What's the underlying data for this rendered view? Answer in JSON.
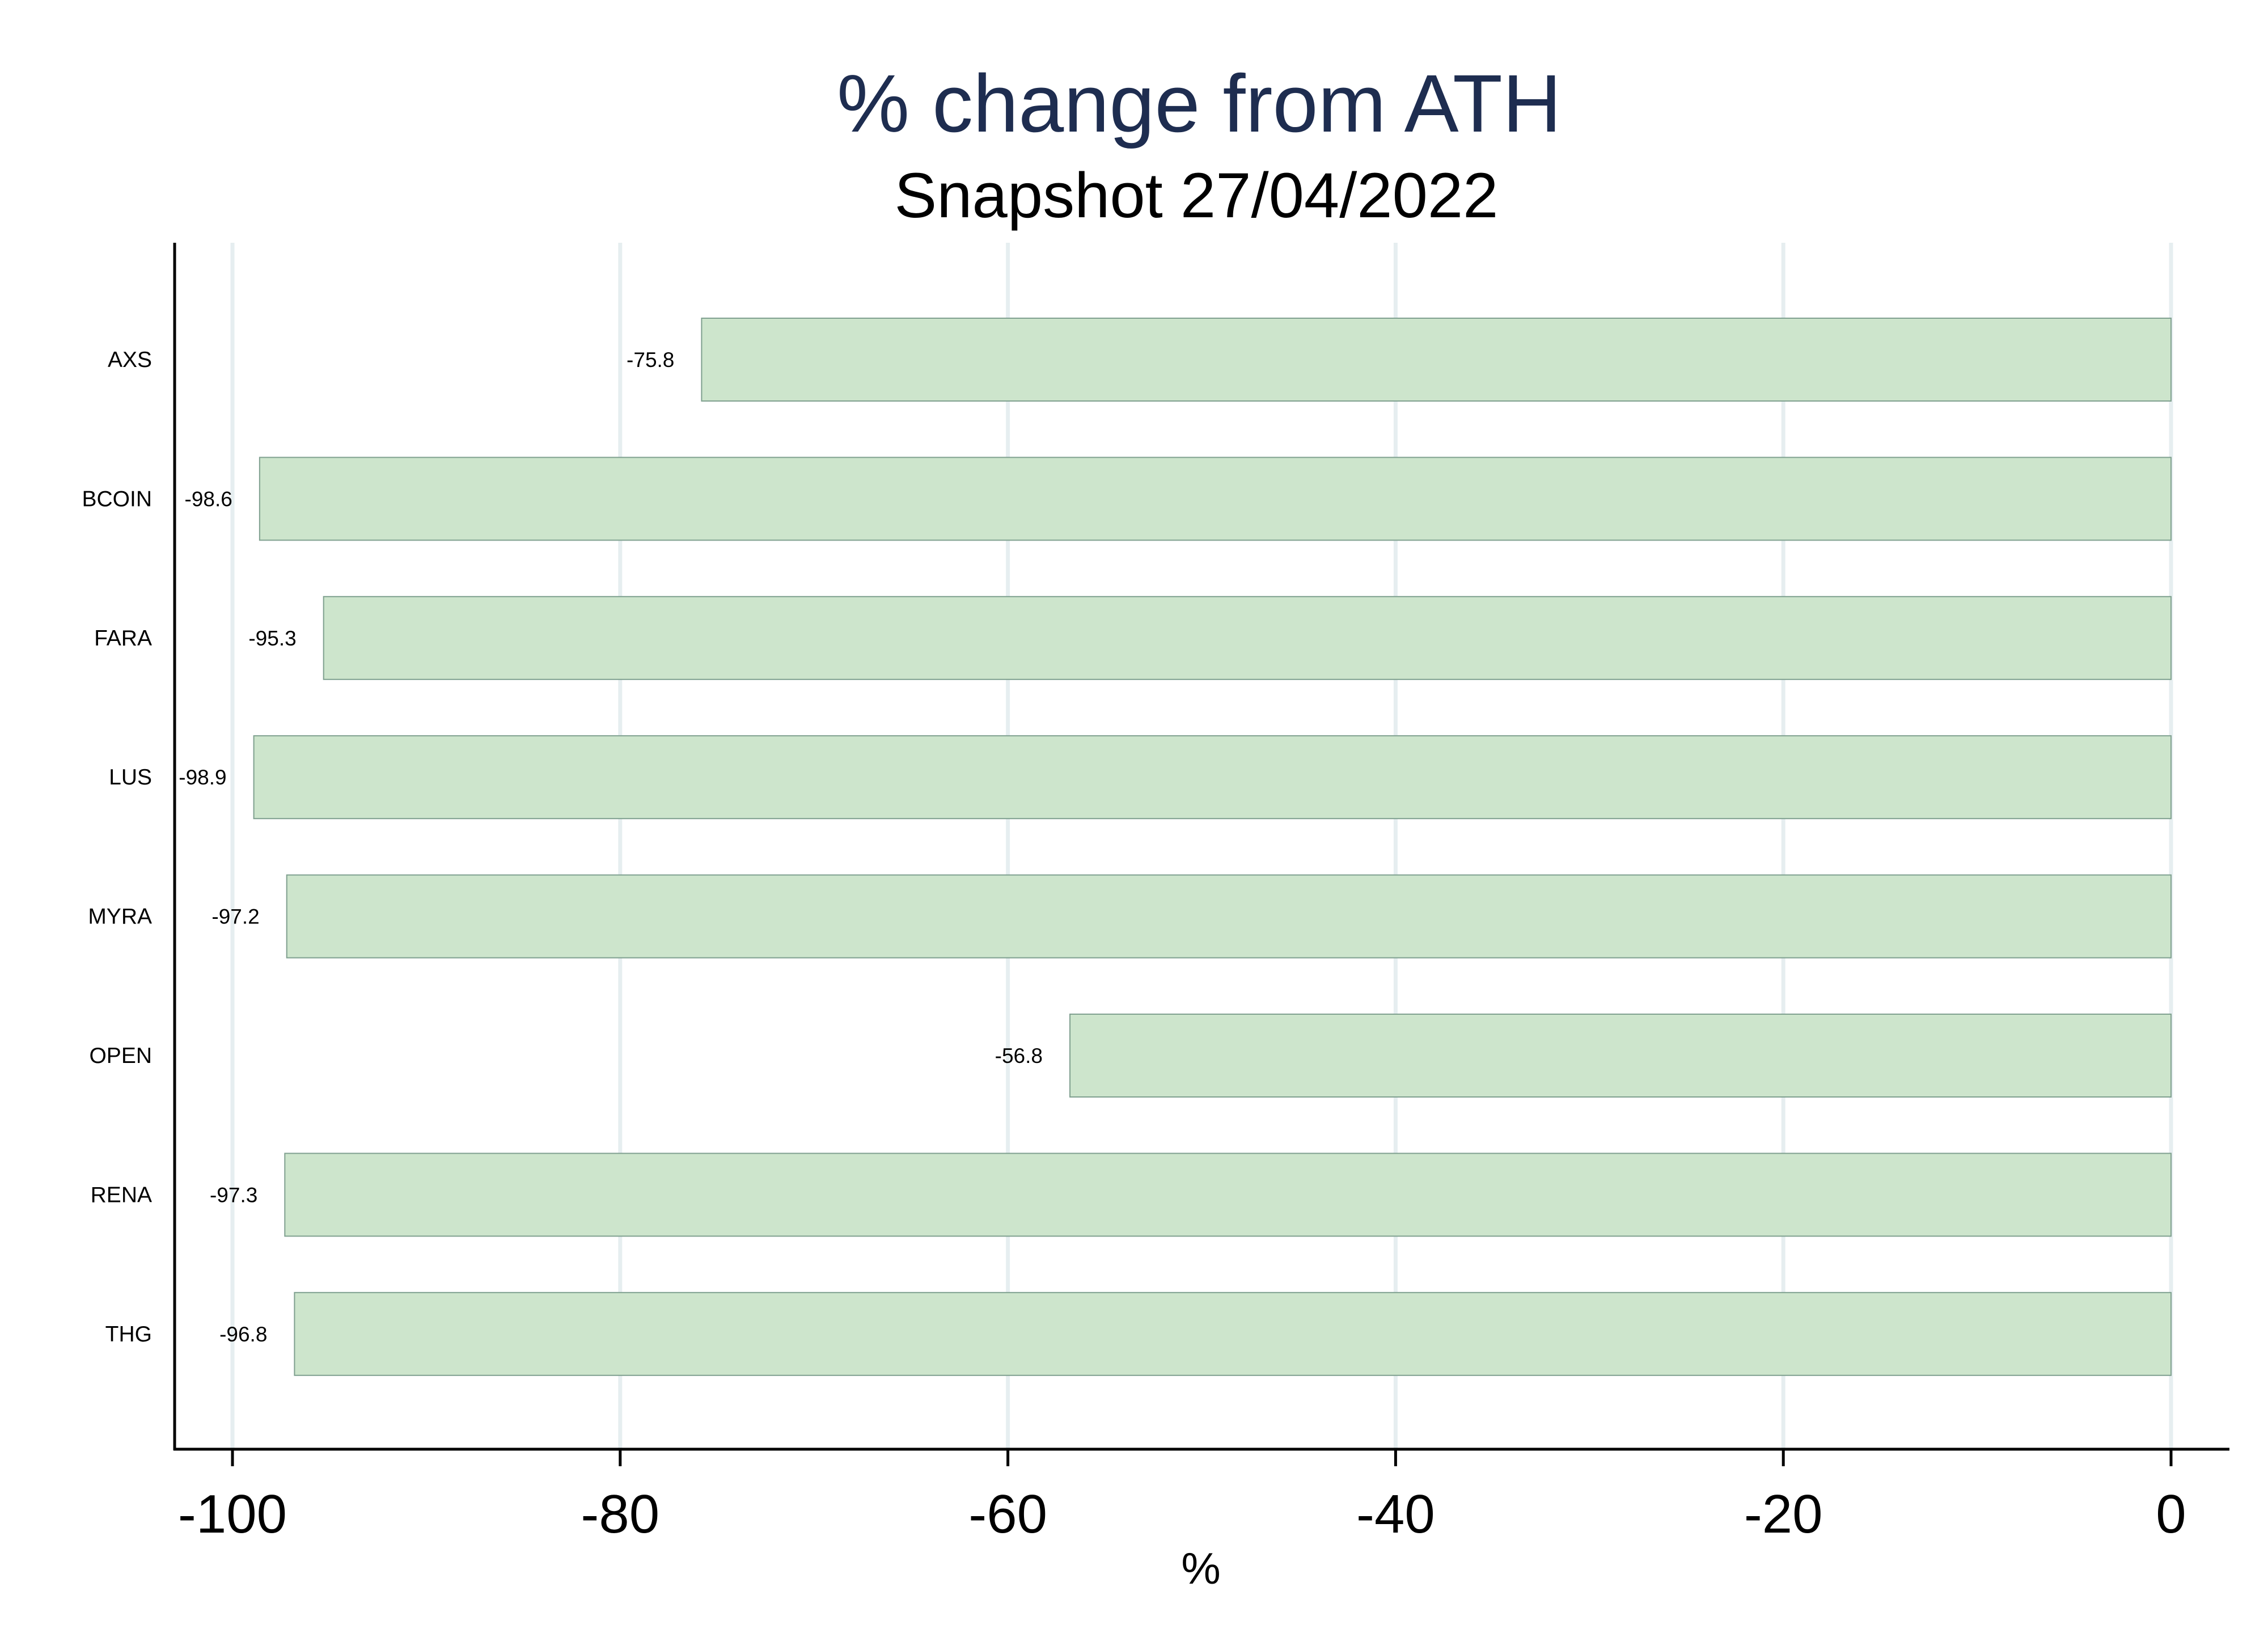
{
  "chart_data": {
    "type": "bar",
    "orientation": "horizontal",
    "title": "% change from ATH",
    "subtitle": "Snapshot 27/04/2022",
    "xlabel": "%",
    "ylabel": "",
    "categories": [
      "AXS",
      "BCOIN",
      "FARA",
      "LUS",
      "MYRA",
      "OPEN",
      "RENA",
      "THG"
    ],
    "values": [
      -75.8,
      -98.6,
      -95.3,
      -98.9,
      -97.2,
      -56.8,
      -97.3,
      -96.8
    ],
    "data_labels": [
      "-75.8",
      "-98.6",
      "-95.3",
      "-98.9",
      "-97.2",
      "-56.8",
      "-97.3",
      "-96.8"
    ],
    "xlim": [
      -100,
      0
    ],
    "xticks": [
      -100,
      -80,
      -60,
      -40,
      -20,
      0
    ],
    "xtick_labels": [
      "-100",
      "-80",
      "-60",
      "-40",
      "-20",
      "0"
    ],
    "grid": "vertical",
    "legend": "none",
    "colors": {
      "bar_fill": "#cde5cc",
      "bar_stroke": "#7fa08f",
      "grid": "#e6eef0",
      "title": "#1e2d50",
      "axis": "#000000"
    }
  }
}
